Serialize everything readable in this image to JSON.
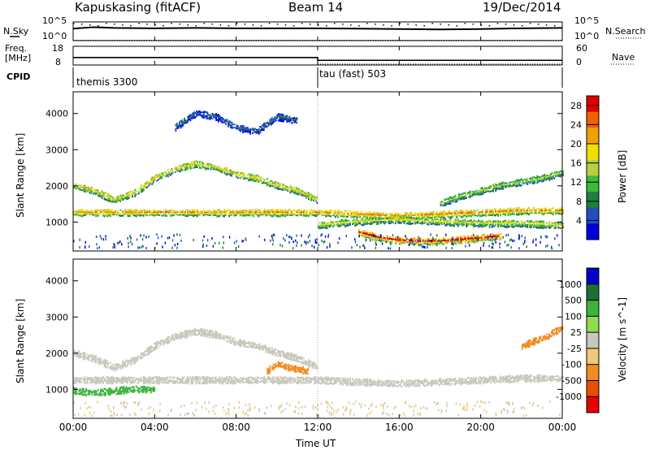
{
  "header": {
    "station": "Kapuskasing (fitACF)",
    "beam": "Beam 14",
    "date": "19/Dec/2014"
  },
  "noise_panel": {
    "left_label": "N.Sky",
    "right_label": "N.Search",
    "left_ticks": [
      "10^5",
      "10^0"
    ],
    "right_ticks": [
      "10^5",
      "10^0"
    ]
  },
  "freq_panel": {
    "left_label_line1": "Freq.",
    "left_label_line2": "[MHz]",
    "right_label": "Nave",
    "left_ticks": [
      "18",
      "8"
    ],
    "right_ticks": [
      "60",
      "0"
    ]
  },
  "cpid_panel": {
    "label": "CPID",
    "mode_1": "themis 3300",
    "mode_2": "tau (fast) 503"
  },
  "x_axis": {
    "title": "Time UT",
    "ticks": [
      "00:00",
      "04:00",
      "08:00",
      "12:00",
      "16:00",
      "20:00",
      "00:00"
    ]
  },
  "colors": {
    "power_scale": [
      "#0000d8",
      "#2050c0",
      "#1e8040",
      "#3cba3c",
      "#b8d040",
      "#f0e000",
      "#f0a000",
      "#f06000",
      "#e00000"
    ],
    "velocity_scale": [
      "#0000cc",
      "#1f6e3a",
      "#3cb43c",
      "#90dc50",
      "#c8c8be",
      "#f0c878",
      "#f08c1e",
      "#e65000",
      "#e60000"
    ]
  },
  "chart_data": [
    {
      "type": "line",
      "panel": "noise",
      "x": [
        0,
        1,
        2,
        4,
        6,
        8,
        10,
        12,
        14,
        16,
        18,
        20,
        22,
        24
      ],
      "series": [
        {
          "name": "N.Sky",
          "values": [
            3.2,
            3.6,
            3.4,
            3.3,
            3.4,
            3.3,
            3.3,
            3.3,
            3.2,
            3.1,
            3.0,
            3.1,
            3.3,
            3.4
          ]
        },
        {
          "name": "N.Search",
          "values": [
            0.1,
            0.1,
            0.1,
            0.1,
            0.1,
            0.1,
            0.1,
            0.1,
            0.1,
            0.1,
            0.1,
            0.1,
            0.1,
            0.1
          ]
        }
      ],
      "xlim": [
        0,
        24
      ],
      "ylim": [
        0,
        5
      ]
    },
    {
      "type": "line",
      "panel": "freq_nave",
      "x": [
        0,
        12,
        12,
        24
      ],
      "series": [
        {
          "name": "Freq.",
          "values": [
            12.0,
            12.0,
            10.5,
            10.5
          ]
        },
        {
          "name": "Nave",
          "values": [
            24,
            24,
            3,
            3
          ]
        }
      ],
      "ylim_left": [
        8,
        18
      ],
      "ylim_right": [
        0,
        60
      ],
      "xlim": [
        0,
        24
      ]
    },
    {
      "type": "heatmap",
      "panel": "power",
      "ylabel": "Slant Range [km]",
      "colorbar_label": "Power [dB]",
      "colorbar_ticks": [
        4,
        8,
        12,
        16,
        20,
        24,
        28
      ],
      "clim": [
        0,
        30
      ],
      "y_ticks": [
        1000,
        2000,
        3000,
        4000
      ],
      "ylim": [
        200,
        4600
      ],
      "xlim": [
        0,
        24
      ],
      "x_ticks": [
        0,
        4,
        8,
        12,
        16,
        20,
        24
      ],
      "echo_bands": [
        {
          "t": [
            0,
            1,
            2,
            3,
            4,
            5,
            6,
            7,
            8,
            9,
            10,
            11,
            12
          ],
          "range": [
            2000,
            1850,
            1600,
            1800,
            2200,
            2450,
            2600,
            2500,
            2300,
            2200,
            2000,
            1850,
            1600
          ],
          "power": 18
        },
        {
          "t": [
            0,
            2,
            4,
            6,
            8,
            10,
            12,
            14,
            16,
            18,
            20,
            22,
            24
          ],
          "range": [
            1250,
            1250,
            1250,
            1250,
            1250,
            1250,
            1250,
            1200,
            1150,
            1200,
            1250,
            1300,
            1300
          ],
          "power": 22
        },
        {
          "t": [
            12,
            14,
            16,
            18,
            20,
            22,
            24
          ],
          "range": [
            900,
            1000,
            1050,
            1000,
            950,
            950,
            900
          ],
          "power": 16
        },
        {
          "t": [
            14,
            15,
            16,
            17,
            18,
            19,
            20,
            21
          ],
          "range": [
            700,
            550,
            480,
            450,
            460,
            500,
            550,
            600
          ],
          "power": 28
        },
        {
          "t": [
            18,
            19,
            20,
            21,
            22,
            23,
            24
          ],
          "range": [
            1500,
            1700,
            1850,
            2000,
            2100,
            2200,
            2350
          ],
          "power": 14
        },
        {
          "t": [
            5,
            6,
            7,
            8,
            9,
            10,
            11
          ],
          "range": [
            3600,
            4000,
            3900,
            3600,
            3500,
            3900,
            3800
          ],
          "power": 6
        }
      ]
    },
    {
      "type": "heatmap",
      "panel": "velocity",
      "ylabel": "Slant Range [km]",
      "colorbar_label": "Velocity [m s^-1]",
      "colorbar_ticks": [
        1000,
        500,
        100,
        25,
        -25,
        -100,
        -500,
        -1000
      ],
      "y_ticks": [
        1000,
        2000,
        3000,
        4000
      ],
      "ylim": [
        200,
        4600
      ],
      "xlim": [
        0,
        24
      ],
      "x_ticks": [
        0,
        4,
        8,
        12,
        16,
        20,
        24
      ],
      "echo_bands": [
        {
          "t": [
            0,
            1,
            2,
            3,
            4,
            5,
            6,
            7,
            8,
            9,
            10,
            11,
            12
          ],
          "range": [
            2000,
            1850,
            1600,
            1800,
            2200,
            2450,
            2600,
            2500,
            2300,
            2200,
            2000,
            1850,
            1600
          ],
          "velocity": 0
        },
        {
          "t": [
            0,
            2,
            4,
            6,
            8,
            10,
            12,
            14,
            16,
            18,
            20,
            22,
            24
          ],
          "range": [
            1250,
            1250,
            1250,
            1250,
            1250,
            1250,
            1250,
            1200,
            1150,
            1200,
            1250,
            1300,
            1300
          ],
          "velocity": 0
        },
        {
          "t": [
            9.5,
            10,
            10.5,
            11,
            11.5
          ],
          "range": [
            1500,
            1700,
            1600,
            1550,
            1500
          ],
          "velocity": -400
        },
        {
          "t": [
            0,
            1,
            2,
            3,
            4
          ],
          "range": [
            950,
            900,
            950,
            1000,
            1000
          ],
          "velocity": 200
        },
        {
          "t": [
            22,
            23,
            24
          ],
          "range": [
            2200,
            2400,
            2700
          ],
          "velocity": -200
        }
      ]
    }
  ]
}
